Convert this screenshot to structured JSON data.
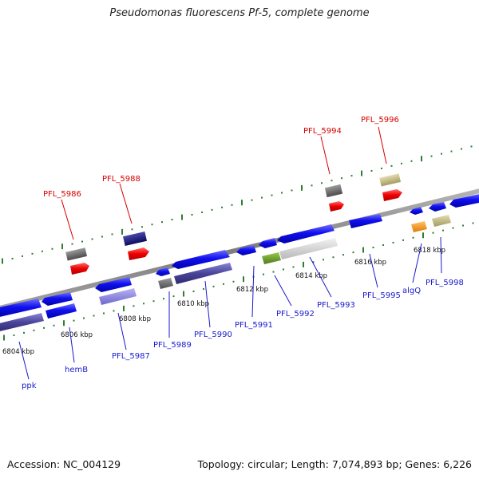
{
  "title": "Pseudomonas fluorescens Pf-5, complete genome",
  "accession": "Accession: NC_004129",
  "topology": "Topology: circular; Length: 7,074,893 bp; Genes: 6,226",
  "colors": {
    "label_red": "#d40000",
    "label_blue": "#1a1acc",
    "label_orange": "#b36b00",
    "tick_green": "#2e8b2e",
    "backbone": "#888888"
  },
  "kbp_ticks": [
    "6804 kbp",
    "6806 kbp",
    "6808 kbp",
    "6810 kbp",
    "6812 kbp",
    "6814 kbp",
    "6816 kbp",
    "6818 kbp"
  ],
  "genes_top": [
    {
      "label": "PFL_5986"
    },
    {
      "label": "PFL_5988"
    },
    {
      "label": "PFL_5994"
    },
    {
      "label": "PFL_5996"
    }
  ],
  "genes_bottom": [
    {
      "label": "ppk"
    },
    {
      "label": "hemB"
    },
    {
      "label": "PFL_5987"
    },
    {
      "label": "PFL_5989"
    },
    {
      "label": "PFL_5990"
    },
    {
      "label": "PFL_5991"
    },
    {
      "label": "PFL_5992"
    },
    {
      "label": "PFL_5993"
    },
    {
      "label": "PFL_5995"
    },
    {
      "label": "algQ"
    },
    {
      "label": "PFL_5998"
    }
  ]
}
